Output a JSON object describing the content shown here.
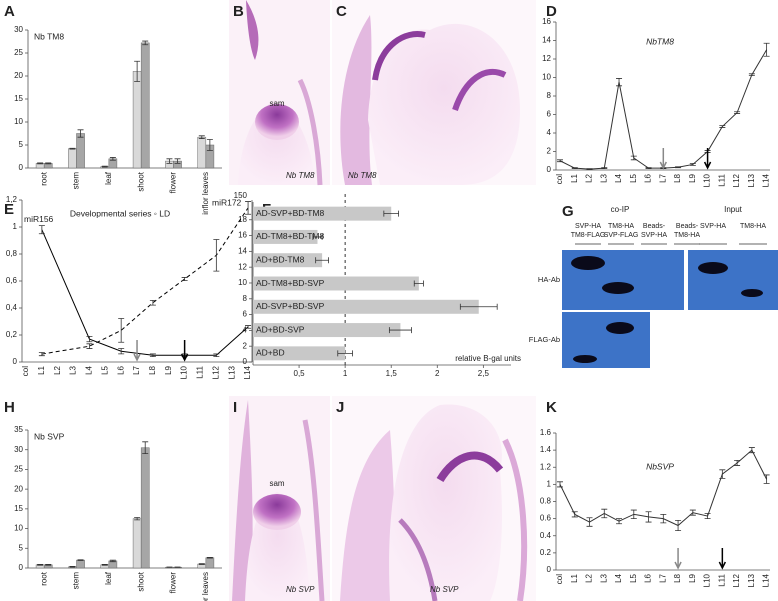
{
  "chart_data": [
    {
      "type": "bar",
      "label": "A",
      "title": "Nb TM8",
      "categories": [
        "root",
        "stem",
        "leaf",
        "shoot",
        "flower",
        "inflor leaves"
      ],
      "series": [
        {
          "color": "#d9d9d9",
          "values": [
            1,
            4.2,
            0.3,
            21,
            1.5,
            6.7
          ],
          "errors": [
            0.1,
            0.1,
            0.1,
            2.2,
            0.5,
            0.3
          ]
        },
        {
          "color": "#a6a6a6",
          "values": [
            1,
            7.5,
            2,
            27.2,
            1.5,
            5
          ],
          "errors": [
            0.1,
            0.8,
            0.3,
            0.4,
            0.5,
            1.2
          ]
        }
      ],
      "ylim": [
        0,
        30
      ],
      "yticks": [
        0,
        5,
        10,
        15,
        20,
        25,
        30
      ]
    },
    {
      "type": "line",
      "label": "D",
      "title": "NbTM8",
      "categories": [
        "col",
        "L1",
        "L2",
        "L3",
        "L4",
        "L5",
        "L6",
        "L7",
        "L8",
        "L9",
        "L10",
        "L11",
        "L12",
        "L13",
        "L14"
      ],
      "series": [
        {
          "color": "#333333",
          "values": [
            1,
            0.2,
            0.1,
            0.2,
            9.5,
            1.3,
            0.2,
            0.2,
            0.3,
            0.6,
            2,
            4.7,
            6.2,
            10.3,
            13
          ],
          "errors": [
            0.1,
            0.05,
            0.05,
            0.05,
            0.4,
            0.2,
            0.05,
            0.05,
            0.05,
            0.1,
            0.1,
            0.1,
            0.1,
            0.1,
            0.7
          ]
        }
      ],
      "ylim": [
        0,
        16
      ],
      "yticks": [
        0,
        2,
        4,
        6,
        8,
        10,
        12,
        14,
        16
      ],
      "arrows": [
        {
          "at": "L7",
          "color": "#888888"
        },
        {
          "at": "L10",
          "color": "#000000"
        }
      ]
    },
    {
      "type": "line",
      "label": "E",
      "title": "Developmental series ◦ LD",
      "categories": [
        "col",
        "L1",
        "L2",
        "L3",
        "L4",
        "L5",
        "L6",
        "L7",
        "L8",
        "L9",
        "L10",
        "L11",
        "L12",
        "L13",
        "L14"
      ],
      "series": [
        {
          "name": "miR156",
          "color": "#000000",
          "x": [
            "L1",
            "L4",
            "L6",
            "L8",
            "L10",
            "L12",
            "L14"
          ],
          "values": [
            0.98,
            0.17,
            0.08,
            0.05,
            0.05,
            0.05,
            0.26
          ],
          "errors": [
            0.03,
            0.02,
            0.02,
            0.01,
            0.01,
            0.01,
            0.01
          ]
        },
        {
          "name": "miR172",
          "color": "#000000",
          "dash": true,
          "axis": "y2",
          "x": [
            "L1",
            "L4",
            "L6",
            "L8",
            "L10",
            "L12",
            "L14"
          ],
          "values": [
            1,
            2,
            4,
            7.5,
            10.5,
            13.5,
            19.5
          ],
          "errors": [
            0.2,
            0.3,
            1.5,
            0.3,
            0.2,
            2,
            0.8
          ]
        }
      ],
      "ylim": [
        0,
        1.2
      ],
      "yticks": [
        0,
        {
          "value": 0.2,
          "label": "0,2"
        },
        {
          "value": 0.4,
          "label": "0,4"
        },
        {
          "value": 0.6,
          "label": "0,6"
        },
        {
          "value": 0.8,
          "label": "0,8"
        },
        1,
        {
          "value": 1.2,
          "label": "1,2"
        }
      ],
      "y2lim": [
        0,
        20.5
      ],
      "y2ticks": [
        0,
        2,
        4,
        6,
        8,
        10,
        12,
        14,
        16,
        18
      ],
      "y2top_label": "150",
      "arrows": [
        {
          "at": "L7",
          "color": "#888888"
        },
        {
          "at": "L10",
          "color": "#000000"
        }
      ]
    },
    {
      "type": "bar",
      "orientation": "horizontal",
      "label": "F",
      "xlabel": "relative B-gal units",
      "color": "#c8c8c8",
      "categories": [
        "AD-SVP+BD-TM8",
        "AD-TM8+BD-TM8",
        "AD+BD-TM8",
        "AD-TM8+BD-SVP",
        "AD-SVP+BD-SVP",
        "AD+BD-SVP",
        "AD+BD"
      ],
      "values": [
        1.5,
        0.7,
        0.75,
        1.8,
        2.45,
        1.6,
        1
      ],
      "errors": [
        0.08,
        0.05,
        0.07,
        0.05,
        0.2,
        0.12,
        0.08
      ],
      "xlim": [
        0,
        2.8
      ],
      "xticks": [
        {
          "value": 0.5,
          "label": "0,5"
        },
        1,
        {
          "value": 1.5,
          "label": "1,5"
        },
        2,
        {
          "value": 2.5,
          "label": "2,5"
        }
      ],
      "refline": 1
    },
    {
      "type": "bar",
      "label": "H",
      "title": "Nb SVP",
      "categories": [
        "root",
        "stem",
        "leaf",
        "shoot",
        "flower",
        "inflor leaves"
      ],
      "series": [
        {
          "color": "#d9d9d9",
          "values": [
            0.8,
            0.3,
            0.8,
            12.5,
            0.2,
            1
          ],
          "errors": [
            0.1,
            0.1,
            0.1,
            0.3,
            0.05,
            0.1
          ]
        },
        {
          "color": "#a6a6a6",
          "values": [
            0.8,
            2,
            1.8,
            30.5,
            0.2,
            2.6
          ],
          "errors": [
            0.1,
            0.1,
            0.2,
            1.5,
            0.05,
            0.1
          ]
        }
      ],
      "ylim": [
        0,
        35
      ],
      "yticks": [
        0,
        5,
        10,
        15,
        20,
        25,
        30,
        35
      ]
    },
    {
      "type": "line",
      "label": "K",
      "title": "NbSVP",
      "categories": [
        "col",
        "L1",
        "L2",
        "L3",
        "L4",
        "L5",
        "L6",
        "L7",
        "L8",
        "L9",
        "L10",
        "L11",
        "L12",
        "L13",
        "L14"
      ],
      "series": [
        {
          "color": "#333333",
          "values": [
            1,
            0.65,
            0.56,
            0.66,
            0.57,
            0.65,
            0.62,
            0.6,
            0.52,
            0.67,
            0.63,
            1.12,
            1.25,
            1.4,
            1.06
          ],
          "errors": [
            0.03,
            0.03,
            0.05,
            0.05,
            0.03,
            0.05,
            0.06,
            0.05,
            0.06,
            0.03,
            0.03,
            0.05,
            0.03,
            0.03,
            0.05
          ]
        }
      ],
      "ylim": [
        0,
        1.6
      ],
      "yticks": [
        0,
        0.2,
        0.4,
        0.6,
        0.8,
        1,
        1.2,
        1.4,
        1.6
      ],
      "arrows": [
        {
          "at": "L8",
          "color": "#888888"
        },
        {
          "at": "L11",
          "color": "#000000"
        }
      ]
    }
  ],
  "images": [
    {
      "label": "B",
      "texts": [
        "sam",
        "Nb TM8"
      ]
    },
    {
      "label": "C",
      "texts": [
        "Nb TM8"
      ]
    },
    {
      "label": "I",
      "texts": [
        "sam",
        "Nb SVP"
      ]
    },
    {
      "label": "J",
      "texts": [
        "Nb SVP"
      ]
    }
  ],
  "blot": {
    "label": "G",
    "coip": "co-IP",
    "input": "Input",
    "lanes": [
      [
        "SVP-HA",
        "TM8-FLAG"
      ],
      [
        "TM8-HA",
        "SVP-FLAG"
      ],
      [
        "Beads-",
        "SVP-HA"
      ],
      [
        "Beads-",
        "TM8-HA"
      ]
    ],
    "input_lanes": [
      "SVP-HA",
      "TM8-HA"
    ],
    "rows": [
      "HA-Ab",
      "FLAG-Ab"
    ]
  }
}
